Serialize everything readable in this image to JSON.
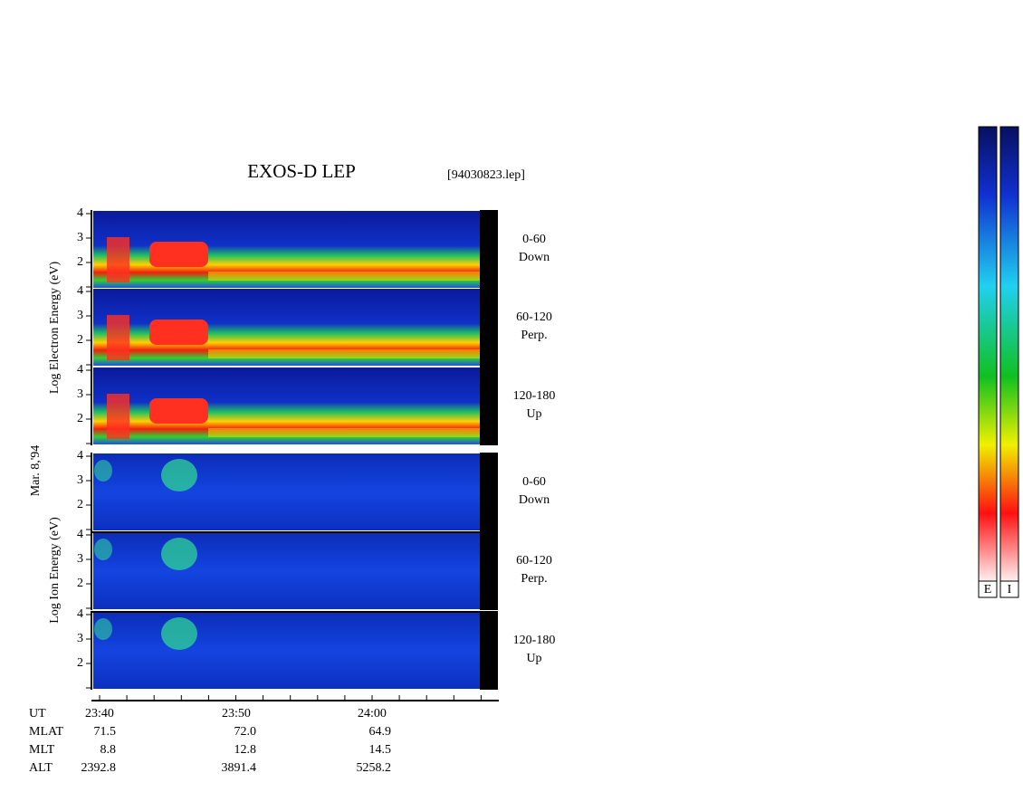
{
  "header": {
    "title": "EXOS-D LEP",
    "file": "[94030823.lep]",
    "date": "Mar. 8,'94"
  },
  "groups": [
    {
      "axis_label": "Log  Electron  Energy (eV)",
      "panels": [
        {
          "angle": "0-60",
          "direction": "Down",
          "yticks": [
            "4",
            "3",
            "2"
          ]
        },
        {
          "angle": "60-120",
          "direction": "Perp.",
          "yticks": [
            "4",
            "3",
            "2"
          ]
        },
        {
          "angle": "120-180",
          "direction": "Up",
          "yticks": [
            "4",
            "3",
            "2"
          ]
        }
      ]
    },
    {
      "axis_label": "Log  Ion  Energy (eV)",
      "panels": [
        {
          "angle": "0-60",
          "direction": "Down",
          "yticks": [
            "4",
            "3",
            "2"
          ]
        },
        {
          "angle": "60-120",
          "direction": "Perp.",
          "yticks": [
            "4",
            "3",
            "2"
          ]
        },
        {
          "angle": "120-180",
          "direction": "Up",
          "yticks": [
            "4",
            "3",
            "2"
          ]
        }
      ]
    }
  ],
  "orbit": {
    "rows": [
      [
        "UT",
        "23:40",
        "23:50",
        "24:00"
      ],
      [
        "MLAT",
        "71.5",
        "72.0",
        "64.9"
      ],
      [
        "MLT",
        "8.8",
        "12.8",
        "14.5"
      ],
      [
        "ALT",
        "2392.8",
        "3891.4",
        "5258.2"
      ]
    ]
  },
  "colorbars": [
    "E",
    "I"
  ]
}
